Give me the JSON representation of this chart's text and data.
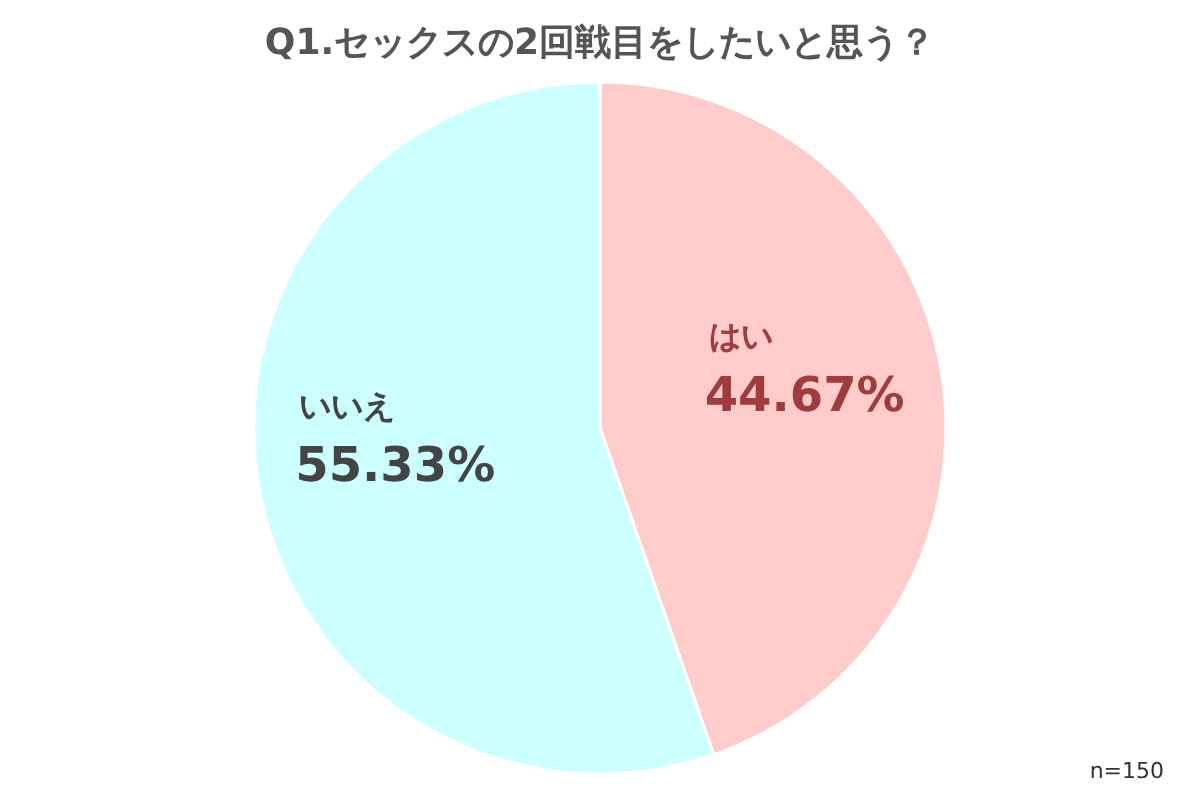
{
  "chart_data": {
    "type": "pie",
    "title": "Q1.セックスの2回戦目をしたいと思う？",
    "categories": [
      "はい",
      "いいえ"
    ],
    "values": [
      44.67,
      55.33
    ],
    "value_labels": [
      "44.67%",
      "55.33%"
    ],
    "colors": [
      "#ffcccc",
      "#ccffff"
    ],
    "annotations": [
      "n=150"
    ]
  }
}
